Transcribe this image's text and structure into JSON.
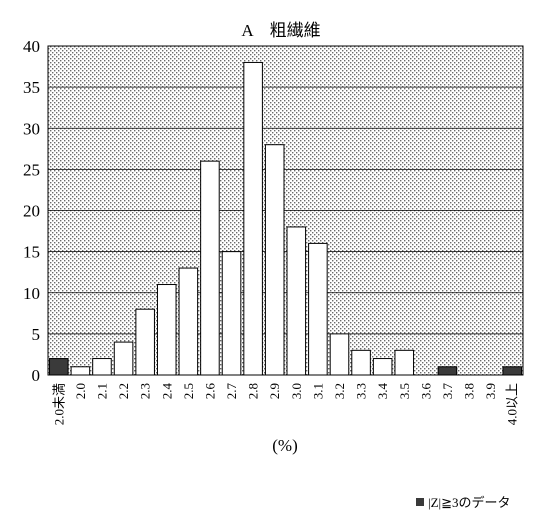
{
  "chart_data": {
    "type": "bar",
    "title": "A　粗繊維",
    "xlabel": "(%)",
    "ylabel": "",
    "ylim": [
      0,
      40
    ],
    "yticks": [
      0,
      5,
      10,
      15,
      20,
      25,
      30,
      35,
      40
    ],
    "grid": true,
    "categories": [
      "2.0未満",
      "2.0",
      "2.1",
      "2.2",
      "2.3",
      "2.4",
      "2.5",
      "2.6",
      "2.7",
      "2.8",
      "2.9",
      "3.0",
      "3.1",
      "3.2",
      "3.3",
      "3.4",
      "3.5",
      "3.6",
      "3.7",
      "3.8",
      "3.9",
      "4.0以上"
    ],
    "values": [
      2,
      1,
      2,
      4,
      8,
      11,
      13,
      26,
      15,
      38,
      28,
      18,
      16,
      5,
      3,
      2,
      3,
      0,
      1,
      0,
      0,
      1
    ],
    "outlier": [
      true,
      false,
      false,
      false,
      false,
      false,
      false,
      false,
      false,
      false,
      false,
      false,
      false,
      false,
      false,
      false,
      false,
      false,
      true,
      false,
      false,
      true
    ],
    "legend": {
      "label": "|Z|≧3のデータ",
      "position": "bottom-right"
    },
    "colors": {
      "normal_bar": "#ffffff",
      "outlier_bar": "#3a3a3a",
      "plot_background": "#d4d4d4",
      "border": "#000000"
    }
  }
}
